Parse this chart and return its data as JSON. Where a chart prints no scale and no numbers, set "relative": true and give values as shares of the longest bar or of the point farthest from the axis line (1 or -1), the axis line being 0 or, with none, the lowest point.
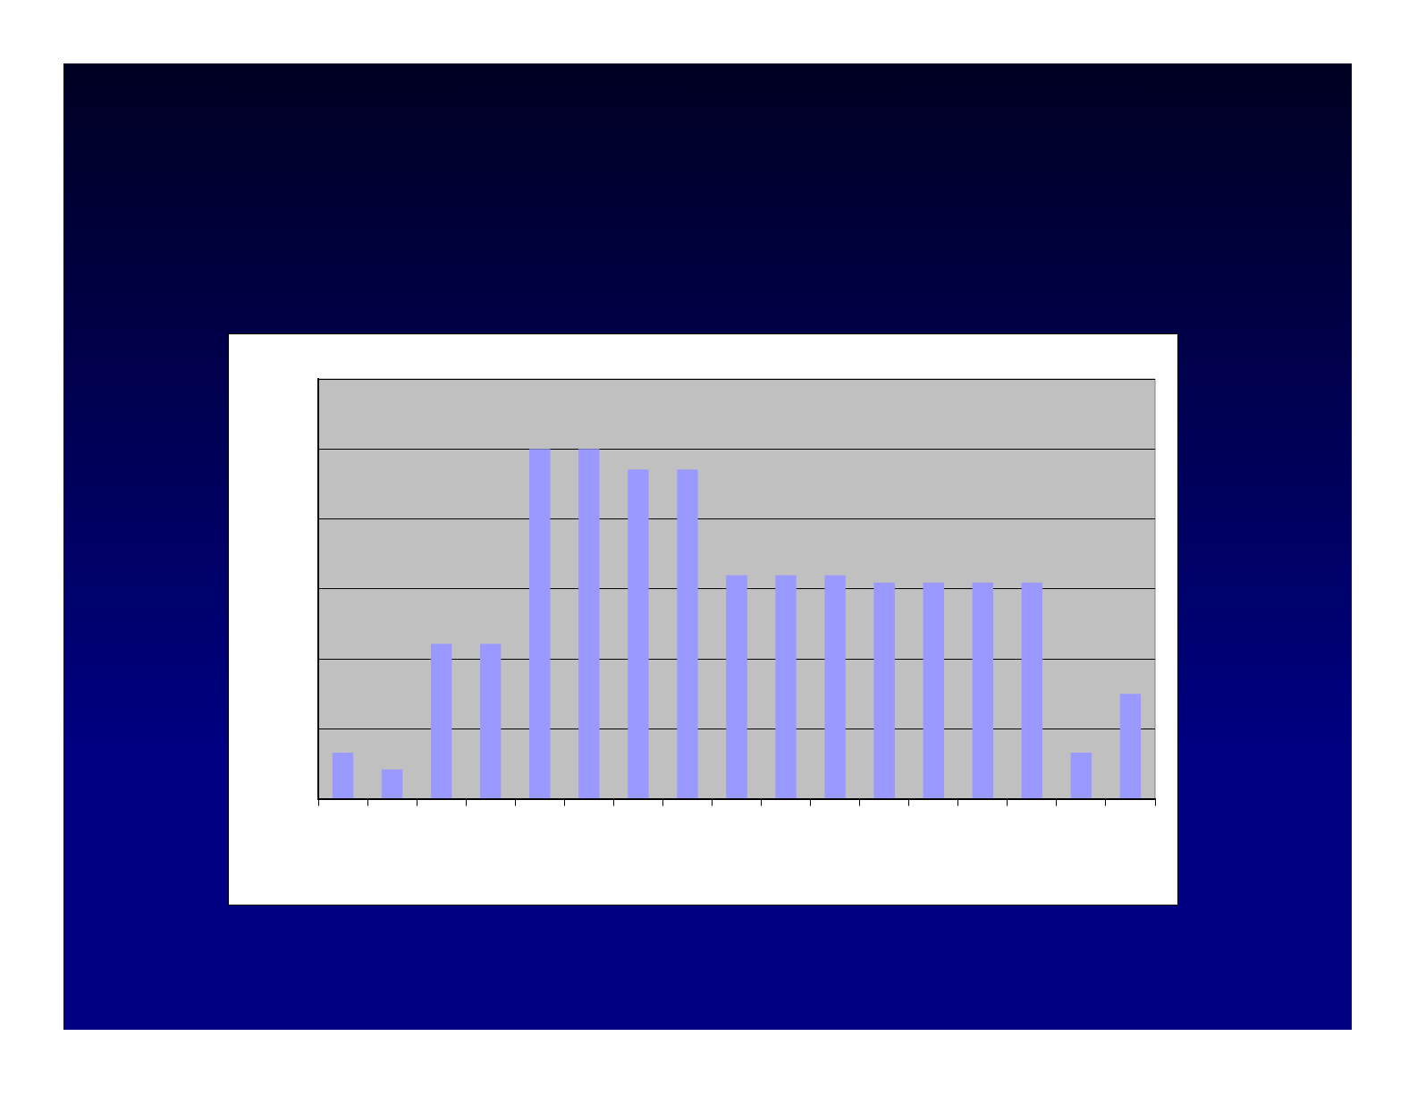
{
  "chart_data": {
    "type": "bar",
    "relative": true,
    "categories": [
      null,
      null,
      null,
      null,
      null,
      null,
      null,
      null,
      null,
      null,
      null,
      null,
      null,
      null,
      null,
      null,
      null
    ],
    "values": [
      0.132,
      0.084,
      0.443,
      0.443,
      1,
      1,
      0.941,
      0.941,
      0.639,
      0.639,
      0.639,
      0.618,
      0.618,
      0.618,
      0.618,
      0.132,
      0.3
    ],
    "color": "#9999ff",
    "grid": "y",
    "legend": false
  }
}
